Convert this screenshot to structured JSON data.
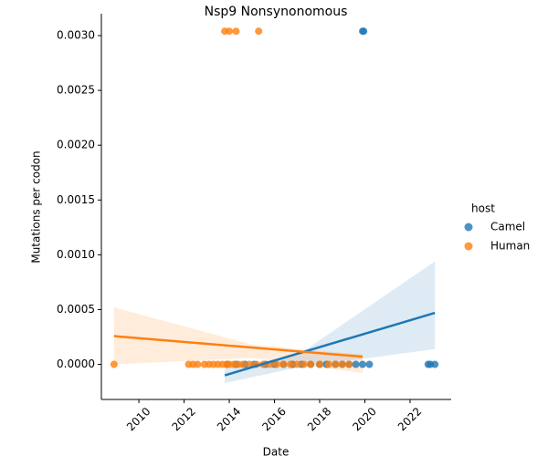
{
  "chart_data": {
    "type": "scatter",
    "title": "Nsp9 Nonsynonomous",
    "x_label": "Date",
    "y_label": "Mutations per codon",
    "xlim": [
      2008.34,
      2023.82
    ],
    "ylim": [
      -0.00032,
      0.0032
    ],
    "xticks": [
      2010,
      2012,
      2014,
      2016,
      2018,
      2020,
      2022
    ],
    "yticks": [
      {
        "value": 0,
        "label": "0.0000"
      },
      {
        "value": 0.0005,
        "label": "0.0005"
      },
      {
        "value": 0.001,
        "label": "0.0010"
      },
      {
        "value": 0.0015,
        "label": "0.0015"
      },
      {
        "value": 0.002,
        "label": "0.0020"
      },
      {
        "value": 0.0025,
        "label": "0.0025"
      },
      {
        "value": 0.003,
        "label": "0.0030"
      }
    ],
    "legend_title": "host",
    "legend": "right",
    "series": [
      {
        "name": "Camel",
        "color": "#1f77b4",
        "x": [
          2013.9,
          2014.3,
          2014.7,
          2015.1,
          2015.6,
          2016.0,
          2016.4,
          2016.8,
          2017.2,
          2017.6,
          2018.0,
          2018.3,
          2018.7,
          2019.0,
          2019.3,
          2019.6,
          2019.9,
          2020.2,
          2022.8,
          2022.9,
          2023.1,
          2019.9,
          2019.95
        ],
        "values": [
          0,
          0,
          0,
          0,
          0,
          0,
          0,
          0,
          0,
          0,
          0,
          0,
          0,
          0,
          0,
          0,
          0,
          0,
          0,
          0,
          0,
          0.00304,
          0.00304
        ],
        "regression": {
          "x": [
            2013.8,
            2023.1
          ],
          "y": [
            -0.0001,
            0.00047
          ]
        },
        "ci": {
          "x": [
            2013.8,
            2017.0,
            2023.1
          ],
          "lower": [
            -0.00017,
            -3e-05,
            0.00014
          ],
          "upper": [
            -3e-05,
            8e-05,
            0.00094
          ]
        }
      },
      {
        "name": "Human",
        "color": "#ff7f0e",
        "x": [
          2008.9,
          2012.2,
          2012.4,
          2012.6,
          2012.9,
          2013.1,
          2013.3,
          2013.5,
          2013.7,
          2013.9,
          2014.0,
          2014.2,
          2014.4,
          2014.6,
          2014.9,
          2015.2,
          2015.5,
          2015.8,
          2016.1,
          2016.4,
          2016.7,
          2017.0,
          2017.3,
          2017.6,
          2018.0,
          2018.4,
          2018.7,
          2019.0,
          2019.3,
          2013.8,
          2014.0,
          2014.3,
          2015.3
        ],
        "values": [
          0,
          0,
          0,
          0,
          0,
          0,
          0,
          0,
          0,
          0,
          0,
          0,
          0,
          0,
          0,
          0,
          0,
          0,
          0,
          0,
          0,
          0,
          0,
          0,
          0,
          0,
          0,
          0,
          0,
          0.00304,
          0.00304,
          0.00304,
          0.00304
        ],
        "regression": {
          "x": [
            2008.9,
            2019.9
          ],
          "y": [
            0.000258,
            7e-05
          ]
        },
        "ci": {
          "x": [
            2008.9,
            2015.0,
            2019.9
          ],
          "lower": [
            0.0,
            6e-05,
            -8e-05
          ],
          "upper": [
            0.00052,
            0.00018,
            9e-05
          ]
        }
      }
    ]
  }
}
